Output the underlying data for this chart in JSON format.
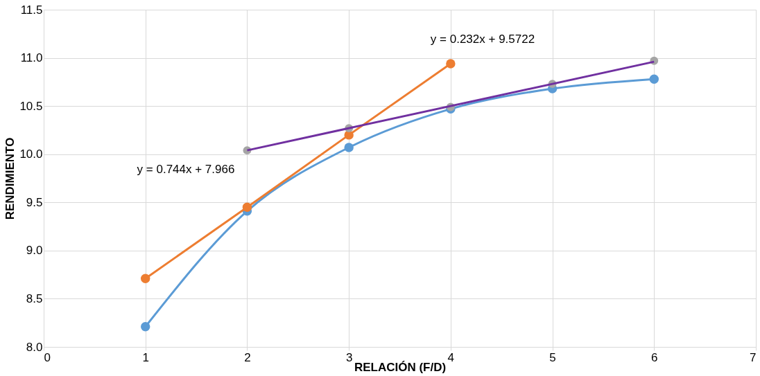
{
  "chart_data": {
    "type": "line",
    "xlabel": "RELACIÓN (F/D)",
    "ylabel": "RENDIMIENTO",
    "xlim": [
      0,
      7
    ],
    "xticks": [
      {
        "value": 0,
        "label": "0"
      },
      {
        "value": 1,
        "label": "1"
      },
      {
        "value": 2,
        "label": "2"
      },
      {
        "value": 3,
        "label": "3"
      },
      {
        "value": 4,
        "label": "4"
      },
      {
        "value": 5,
        "label": "5"
      },
      {
        "value": 6,
        "label": "6"
      },
      {
        "value": 7,
        "label": "7"
      }
    ],
    "ylim": [
      8.0,
      11.5
    ],
    "yticks": [
      {
        "value": 8.0,
        "label": "8.0"
      },
      {
        "value": 8.5,
        "label": "8.5"
      },
      {
        "value": 9.0,
        "label": "9.0"
      },
      {
        "value": 9.5,
        "label": "9.5"
      },
      {
        "value": 10.0,
        "label": "10.0"
      },
      {
        "value": 10.5,
        "label": "10.5"
      },
      {
        "value": 11.0,
        "label": "11.0"
      },
      {
        "value": 11.5,
        "label": "11.5"
      }
    ],
    "grid": true,
    "marker": "circle",
    "line_style": "solid",
    "series": [
      {
        "color": "#5b9bd5",
        "x": [
          1,
          2,
          3,
          4,
          5,
          6
        ],
        "values": [
          8.21,
          9.41,
          10.07,
          10.47,
          10.68,
          10.78
        ]
      },
      {
        "color": "#ed7d31",
        "x": [
          1,
          2,
          3,
          4
        ],
        "values": [
          8.71,
          9.45,
          10.2,
          10.94
        ]
      },
      {
        "type": "scatter",
        "color": "#a5a5a5",
        "x": [
          2,
          3,
          4,
          5,
          6
        ],
        "values": [
          10.04,
          10.27,
          10.49,
          10.73,
          10.97
        ]
      },
      {
        "color": "#7030a0",
        "marker": "none",
        "x": [
          2,
          6
        ],
        "values": [
          10.04,
          10.96
        ]
      }
    ],
    "annotations": [
      "y = 0.232x + 9.5722",
      "y = 0.744x + 7.966"
    ]
  }
}
